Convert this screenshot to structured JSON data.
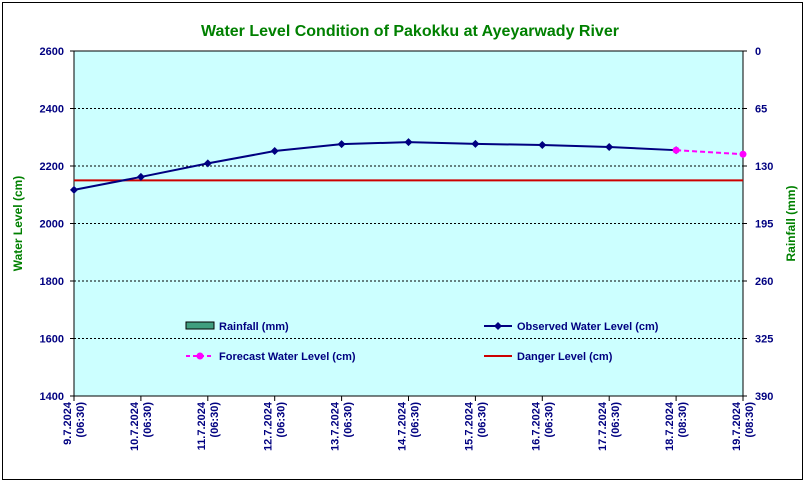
{
  "chart_data": {
    "type": "line",
    "title": "Water Level Condition of Pakokku at Ayeyarwady River",
    "ylabel": "Water Level (cm)",
    "y2label": "Rainfall (mm)",
    "ylim": [
      1400,
      2600
    ],
    "y_ticks": [
      "1400",
      "1600",
      "1800",
      "2000",
      "2200",
      "2400",
      "2600"
    ],
    "y2lim": [
      390,
      0
    ],
    "y2_ticks": [
      "390",
      "325",
      "260",
      "195",
      "130",
      "65",
      "0"
    ],
    "grid": true,
    "categories": [
      [
        "9.7.2024",
        "(06:30)"
      ],
      [
        "10.7.2024",
        "(06:30)"
      ],
      [
        "11.7.2024",
        "(06:30)"
      ],
      [
        "12.7.2024",
        "(06:30)"
      ],
      [
        "13.7.2024",
        "(06:30)"
      ],
      [
        "14.7.2024",
        "(06:30)"
      ],
      [
        "15.7.2024",
        "(06:30)"
      ],
      [
        "16.7.2024",
        "(06:30)"
      ],
      [
        "17.7.2024",
        "(06:30)"
      ],
      [
        "18.7.2024",
        "(08:30)"
      ],
      [
        "19.7.2024",
        "(08:30)"
      ]
    ],
    "series": [
      {
        "name": "Observed Water Level (cm)",
        "color": "#000080",
        "values": [
          2117,
          2162,
          2209,
          2252,
          2276,
          2283,
          2277,
          2273,
          2266,
          2255,
          null
        ]
      },
      {
        "name": "Forecast Water Level (cm)",
        "color": "#ff00ff",
        "dashed": true,
        "values": [
          null,
          null,
          null,
          null,
          null,
          null,
          null,
          null,
          null,
          2255,
          2241
        ]
      },
      {
        "name": "Danger Level (cm)",
        "color": "#cc0000",
        "values": [
          2150,
          2150,
          2150,
          2150,
          2150,
          2150,
          2150,
          2150,
          2150,
          2150,
          2150
        ]
      },
      {
        "name": "Rainfall (mm)",
        "type": "bar",
        "color": "#3f9f7f",
        "values": [
          0,
          0,
          0,
          0,
          0,
          0,
          0,
          0,
          0,
          0,
          0
        ]
      }
    ],
    "plot_background": "#ccffff"
  }
}
